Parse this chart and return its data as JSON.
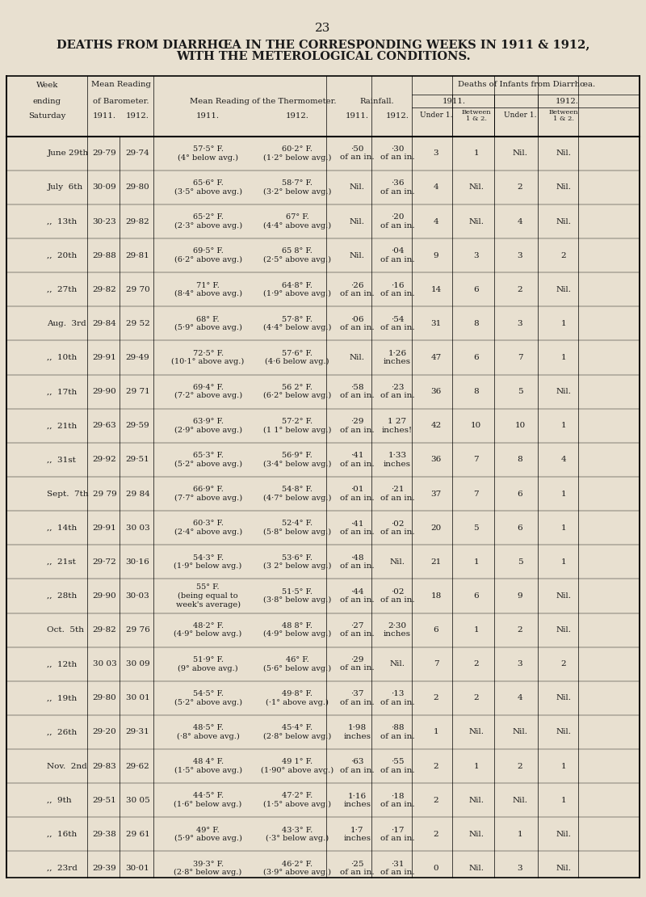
{
  "page_number": "23",
  "title_line1": "DEATHS FROM DIARRHŒA IN THE CORRESPONDING WEEKS IN 1911 & 1912,",
  "title_line2": "WITH THE METEROLOGICAL CONDITIONS.",
  "bg_color": "#e8e0d0",
  "header": {
    "col0": [
      "Week",
      "ending",
      "Saturday"
    ],
    "col1": [
      "Mean Reading",
      "of Barometer.",
      "",
      "1911.",
      "1912."
    ],
    "col2": [
      "Mean Reading of the Thermometer.",
      "",
      "",
      "1911.",
      "1912."
    ],
    "col3": [
      "Rainfall.",
      "",
      "",
      "1911.",
      "1912."
    ],
    "col4": [
      "Deaths of Infants from Diarrhœa.",
      "1911.",
      "1912.",
      "Under 1.",
      "Between\n1 & 2.",
      "Under 1.",
      "Between\n1 & 2."
    ]
  },
  "rows": [
    {
      "week": "June 29th",
      "bar1911": "29·79",
      "bar1912": "29·74",
      "therm1911": "57·5° F.\n(4° below avg.)",
      "therm1912": "60·2° F.\n(1·2° below avg.)",
      "rain1911": "·50\nof an in.",
      "rain1912": "·30\nof an in.",
      "d1911u1": "3",
      "d1911b": "1",
      "d1912u1": "Nil.",
      "d1912b": "Nil."
    },
    {
      "week": "July  6th",
      "bar1911": "30·09",
      "bar1912": "29·80",
      "therm1911": "65·6° F.\n(3·5° above avg.)",
      "therm1912": "58·7° F.\n(3·2° below avg.)",
      "rain1911": "Nil.",
      "rain1912": "·36\nof an in.",
      "d1911u1": "4",
      "d1911b": "Nil.",
      "d1912u1": "2",
      "d1912b": "Nil."
    },
    {
      "week": ",,  13th",
      "bar1911": "30·23",
      "bar1912": "29·82",
      "therm1911": "65·2° F.\n(2·3° above avg.)",
      "therm1912": "67° F.\n(4·4° above avg.)",
      "rain1911": "Nil.",
      "rain1912": "·20\nof an in.",
      "d1911u1": "4",
      "d1911b": "Nil.",
      "d1912u1": "4",
      "d1912b": "Nil."
    },
    {
      "week": ",,  20th",
      "bar1911": "29·88",
      "bar1912": "29·81",
      "therm1911": "69·5° F.\n(6·2° above avg.)",
      "therm1912": "65 8° F.\n(2·5° above avg.)",
      "rain1911": "Nil.",
      "rain1912": "·04\nof an in.",
      "d1911u1": "9",
      "d1911b": "3",
      "d1912u1": "3",
      "d1912b": "2"
    },
    {
      "week": ",,  27th",
      "bar1911": "29·82",
      "bar1912": "29 70",
      "therm1911": "71° F.\n(8·4° above avg.)",
      "therm1912": "64·8° F.\n(1·9° above avg.)",
      "rain1911": "·26\nof an in.",
      "rain1912": "·16\nof an in.",
      "d1911u1": "14",
      "d1911b": "6",
      "d1912u1": "2",
      "d1912b": "Nil."
    },
    {
      "week": "Aug.  3rd",
      "bar1911": "29·84",
      "bar1912": "29 52",
      "therm1911": "68° F.\n(5·9° above avg.)",
      "therm1912": "57·8° F.\n(4·4° below avg.)",
      "rain1911": "·06\nof an in.",
      "rain1912": "·54\nof an in.",
      "d1911u1": "31",
      "d1911b": "8",
      "d1912u1": "3",
      "d1912b": "1"
    },
    {
      "week": ",,  10th",
      "bar1911": "29·91",
      "bar1912": "29·49",
      "therm1911": "72·5° F.\n(10·1° above avg.)",
      "therm1912": "57·6° F.\n(4·6 below avg.)",
      "rain1911": "Nil.",
      "rain1912": "1·26\ninches",
      "d1911u1": "47",
      "d1911b": "6",
      "d1912u1": "7",
      "d1912b": "1"
    },
    {
      "week": ",,  17th",
      "bar1911": "29·90",
      "bar1912": "29 71",
      "therm1911": "69·4° F.\n(7·2° above avg.)",
      "therm1912": "56 2° F.\n(6·2° below avg.)",
      "rain1911": "·58\nof an in.",
      "rain1912": "·23\nof an in.",
      "d1911u1": "36",
      "d1911b": "8",
      "d1912u1": "5",
      "d1912b": "Nil."
    },
    {
      "week": ",,  21th",
      "bar1911": "29·63",
      "bar1912": "29·59",
      "therm1911": "63·9° F.\n(2·9° above avg.)",
      "therm1912": "57·2° F.\n(1 1° below avg.)",
      "rain1911": "·29\nof an in.",
      "rain1912": "1 27\ninches!",
      "d1911u1": "42",
      "d1911b": "10",
      "d1912u1": "10",
      "d1912b": "1"
    },
    {
      "week": ",,  31st",
      "bar1911": "29·92",
      "bar1912": "29·51",
      "therm1911": "65·3° F.\n(5·2° above avg.)",
      "therm1912": "56·9° F.\n(3·4° below avg.)",
      "rain1911": "·41\nof an in.",
      "rain1912": "1·33\ninches",
      "d1911u1": "36",
      "d1911b": "7",
      "d1912u1": "8",
      "d1912b": "4"
    },
    {
      "week": "Sept.  7th",
      "bar1911": "29 79",
      "bar1912": "29 84",
      "therm1911": "66·9° F.\n(7·7° above avg.)",
      "therm1912": "54·8° F.\n(4·7° below avg.)",
      "rain1911": "·01\nof an in.",
      "rain1912": "·21\nof an in.",
      "d1911u1": "37",
      "d1911b": "7",
      "d1912u1": "6",
      "d1912b": "1"
    },
    {
      "week": ",,  14th",
      "bar1911": "29·91",
      "bar1912": "30 03",
      "therm1911": "60·3° F.\n(2·4° above avg.)",
      "therm1912": "52·4° F.\n(5·8° below avg.)",
      "rain1911": "·41\nof an in.",
      "rain1912": "·02\nof an in.",
      "d1911u1": "20",
      "d1911b": "5",
      "d1912u1": "6",
      "d1912b": "1"
    },
    {
      "week": ",,  21st",
      "bar1911": "29·72",
      "bar1912": "30·16",
      "therm1911": "54·3° F.\n(1·9° below avg.)",
      "therm1912": "53·6° F.\n(3 2° below avg.)",
      "rain1911": "·48\nof an in.",
      "rain1912": "Nil.",
      "d1911u1": "21",
      "d1911b": "1",
      "d1912u1": "5",
      "d1912b": "1"
    },
    {
      "week": ",,  28th",
      "bar1911": "29·90",
      "bar1912": "30·03",
      "therm1911": "55° F.\n(being equal to\nweek's average)",
      "therm1912": "51·5° F.\n(3·8° below avg.)",
      "rain1911": "·44\nof an in.",
      "rain1912": "·02\nof an in.",
      "d1911u1": "18",
      "d1911b": "6",
      "d1912u1": "9",
      "d1912b": "Nil."
    },
    {
      "week": "Oct.  5th",
      "bar1911": "29·82",
      "bar1912": "29 76",
      "therm1911": "48·2° F.\n(4·9° below avg.)",
      "therm1912": "48 8° F.\n(4·9° below avg.)",
      "rain1911": "·27\nof an in.",
      "rain1912": "2·30\ninches",
      "d1911u1": "6",
      "d1911b": "1",
      "d1912u1": "2",
      "d1912b": "Nil."
    },
    {
      "week": ",,  12th",
      "bar1911": "30 03",
      "bar1912": "30 09",
      "therm1911": "51·9° F.\n(9° above avg.)",
      "therm1912": "46° F.\n(5·6° below avg.)",
      "rain1911": "·29\nof an in.",
      "rain1912": "Nil.",
      "d1911u1": "7",
      "d1911b": "2",
      "d1912u1": "3",
      "d1912b": "2"
    },
    {
      "week": ",,  19th",
      "bar1911": "29·80",
      "bar1912": "30 01",
      "therm1911": "54·5° F.\n(5·2° above avg.)",
      "therm1912": "49·8° F.\n(·1° above avg.)",
      "rain1911": "·37\nof an in.",
      "rain1912": "·13\nof an in.",
      "d1911u1": "2",
      "d1911b": "2",
      "d1912u1": "4",
      "d1912b": "Nil."
    },
    {
      "week": ",,  26th",
      "bar1911": "29·20",
      "bar1912": "29·31",
      "therm1911": "48·5° F.\n(·8° above avg.)",
      "therm1912": "45·4° F.\n(2·8° below avg.)",
      "rain1911": "1·98\ninches",
      "rain1912": "·88\nof an in.",
      "d1911u1": "1",
      "d1911b": "Nil.",
      "d1912u1": "Nil.",
      "d1912b": "Nil."
    },
    {
      "week": "Nov.  2nd",
      "bar1911": "29·83",
      "bar1912": "29·62",
      "therm1911": "48 4° F.\n(1·5° above avg.)",
      "therm1912": "49 1° F.\n(1·90° above avg.)",
      "rain1911": "·63\nof an in.",
      "rain1912": "·55\nof an in.",
      "d1911u1": "2",
      "d1911b": "1",
      "d1912u1": "2",
      "d1912b": "1"
    },
    {
      "week": ",,  9th",
      "bar1911": "29·51",
      "bar1912": "30 05",
      "therm1911": "44·5° F.\n(1·6° below avg.)",
      "therm1912": "47·2° F.\n(1·5° above avg.)",
      "rain1911": "1·16\ninches",
      "rain1912": "·18\nof an in.",
      "d1911u1": "2",
      "d1911b": "Nil.",
      "d1912u1": "Nil.",
      "d1912b": "1"
    },
    {
      "week": ",,  16th",
      "bar1911": "29·38",
      "bar1912": "29 61",
      "therm1911": "49° F.\n(5·9° above avg.)",
      "therm1912": "43·3° F.\n(·3° below avg.)",
      "rain1911": "1·7\ninches",
      "rain1912": "·17\nof an in.",
      "d1911u1": "2",
      "d1911b": "Nil.",
      "d1912u1": "1",
      "d1912b": "Nil."
    },
    {
      "week": ",,  23rd",
      "bar1911": "29·39",
      "bar1912": "30·01",
      "therm1911": "39·3° F.\n(2·8° below avg.)",
      "therm1912": "46·2° F.\n(3·9° above avg.)",
      "rain1911": "·25\nof an in.",
      "rain1912": "·31\nof an in.",
      "d1911u1": "0",
      "d1911b": "Nil.",
      "d1912u1": "3",
      "d1912b": "Nil."
    }
  ]
}
